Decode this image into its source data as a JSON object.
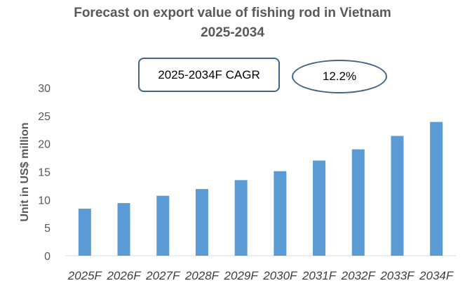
{
  "chart_data": {
    "type": "bar",
    "title_line1": "Forecast on export value of fishing rod in Vietnam",
    "title_line2": "2025-2034",
    "categories": [
      "2025F",
      "2026F",
      "2027F",
      "2028F",
      "2029F",
      "2030F",
      "2031F",
      "2032F",
      "2033F",
      "2034F"
    ],
    "values": [
      8.4,
      9.4,
      10.7,
      11.9,
      13.5,
      15.1,
      17.0,
      19.0,
      21.4,
      23.9
    ],
    "xlabel": "",
    "ylabel": "Unit in US$ million",
    "ylim": [
      0,
      30
    ],
    "yticks": [
      0,
      5,
      10,
      15,
      20,
      25,
      30
    ],
    "grid": false,
    "bar_color": "#5b9bd5",
    "annotations": {
      "cagr_label": "2025-2034F CAGR",
      "cagr_value": "12.2%"
    }
  }
}
